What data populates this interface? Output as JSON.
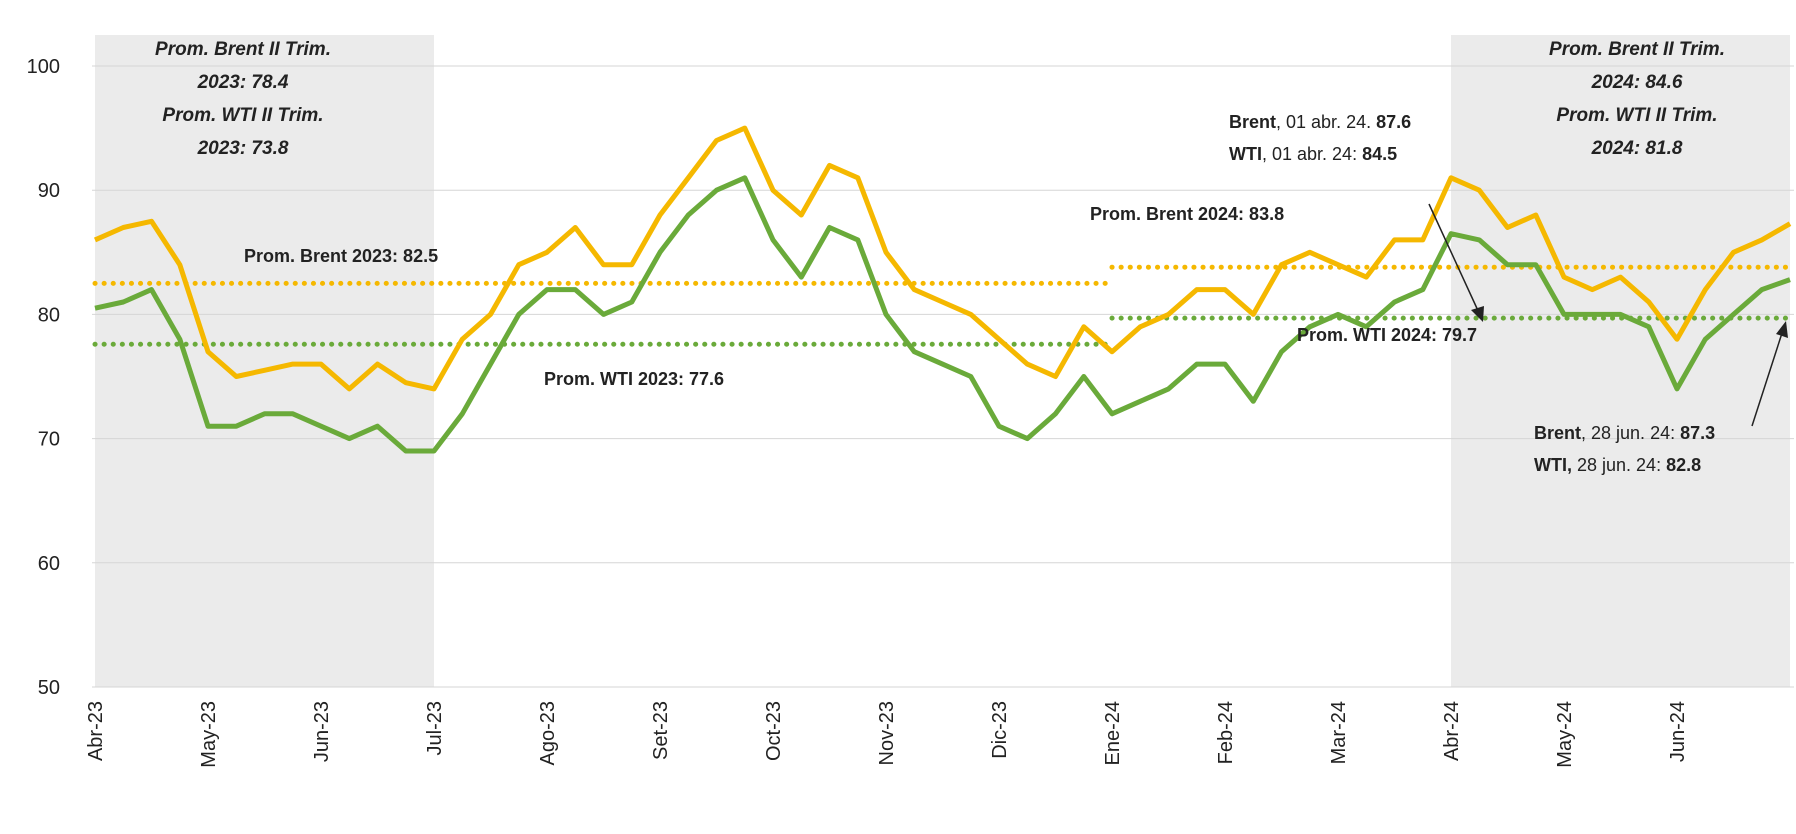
{
  "chart_data": {
    "type": "line",
    "categories": [
      "Abr-23",
      null,
      null,
      null,
      "May-23",
      null,
      null,
      null,
      "Jun-23",
      null,
      null,
      null,
      "Jul-23",
      null,
      null,
      null,
      "Ago-23",
      null,
      null,
      null,
      "Set-23",
      null,
      null,
      null,
      "Oct-23",
      null,
      null,
      null,
      "Nov-23",
      null,
      null,
      null,
      "Dic-23",
      null,
      null,
      null,
      "Ene-24",
      null,
      null,
      null,
      "Feb-24",
      null,
      null,
      null,
      "Mar-24",
      null,
      null,
      null,
      "Abr-24",
      null,
      null,
      null,
      "May-24",
      null,
      null,
      null,
      "Jun-24",
      null,
      null,
      null,
      null
    ],
    "series": [
      {
        "name": "Brent",
        "color": "#f5b800",
        "values": [
          86,
          87,
          87.5,
          84,
          77,
          75,
          75.5,
          76,
          76,
          74,
          76,
          74.5,
          74,
          78,
          80,
          84,
          85,
          87,
          84,
          84,
          88,
          91,
          94,
          95,
          90,
          88,
          92,
          91,
          85,
          82,
          81,
          80,
          78,
          76,
          75,
          79,
          77,
          79,
          80,
          82,
          82,
          80,
          84,
          85,
          84,
          83,
          86,
          86,
          91,
          90,
          87,
          88,
          83,
          82,
          83,
          81,
          78,
          82,
          85,
          86,
          87.3
        ]
      },
      {
        "name": "WTI",
        "color": "#6aaa3a",
        "values": [
          80.5,
          81,
          82,
          78,
          71,
          71,
          72,
          72,
          71,
          70,
          71,
          69,
          69,
          72,
          76,
          80,
          82,
          82,
          80,
          81,
          85,
          88,
          90,
          91,
          86,
          83,
          87,
          86,
          80,
          77,
          76,
          75,
          71,
          70,
          72,
          75,
          72,
          73,
          74,
          76,
          76,
          73,
          77,
          79,
          80,
          79,
          81,
          82,
          86.5,
          86,
          84,
          84,
          80,
          80,
          80,
          79,
          74,
          78,
          80,
          82,
          82.8
        ]
      }
    ],
    "ylim": [
      50,
      100
    ],
    "yticks": [
      50,
      60,
      70,
      80,
      90,
      100
    ],
    "grid": true,
    "shaded": [
      {
        "from": "Abr-23",
        "to": "Jul-23"
      },
      {
        "from": "Abr-24",
        "to": null
      }
    ],
    "reference_lines": [
      {
        "label": "Prom. Brent 2023: 82.5",
        "value": 82.5,
        "color": "#f5b800",
        "from": "Abr-23",
        "to": "Ene-24"
      },
      {
        "label": "Prom. WTI 2023: 77.6",
        "value": 77.6,
        "color": "#6aaa3a",
        "from": "Abr-23",
        "to": "Ene-24"
      },
      {
        "label": "Prom. Brent 2024: 83.8",
        "value": 83.8,
        "color": "#f5b800",
        "from": "Ene-24",
        "to": null
      },
      {
        "label": "Prom. WTI 2024: 79.7",
        "value": 79.7,
        "color": "#6aaa3a",
        "from": "Ene-24",
        "to": null
      }
    ],
    "annotations": [
      {
        "lines": [
          "Prom. Brent II Trim.",
          "2023: 78.4",
          "Prom. WTI II Trim.",
          "2023: 73.8"
        ]
      },
      {
        "lines": [
          "Prom. Brent II Trim.",
          "2024: 84.6",
          "Prom. WTI II Trim.",
          "2024: 81.8"
        ]
      },
      {
        "lines": [
          [
            "Brent",
            ", 01 abr. 24. ",
            "87.6"
          ],
          [
            "WTI",
            ", 01 abr. 24: ",
            "84.5"
          ]
        ]
      },
      {
        "lines": [
          [
            "Brent",
            ", 28 jun. 24: ",
            "87.3"
          ],
          [
            "WTI,",
            " 28 jun. 24: ",
            "82.8"
          ]
        ]
      }
    ]
  }
}
